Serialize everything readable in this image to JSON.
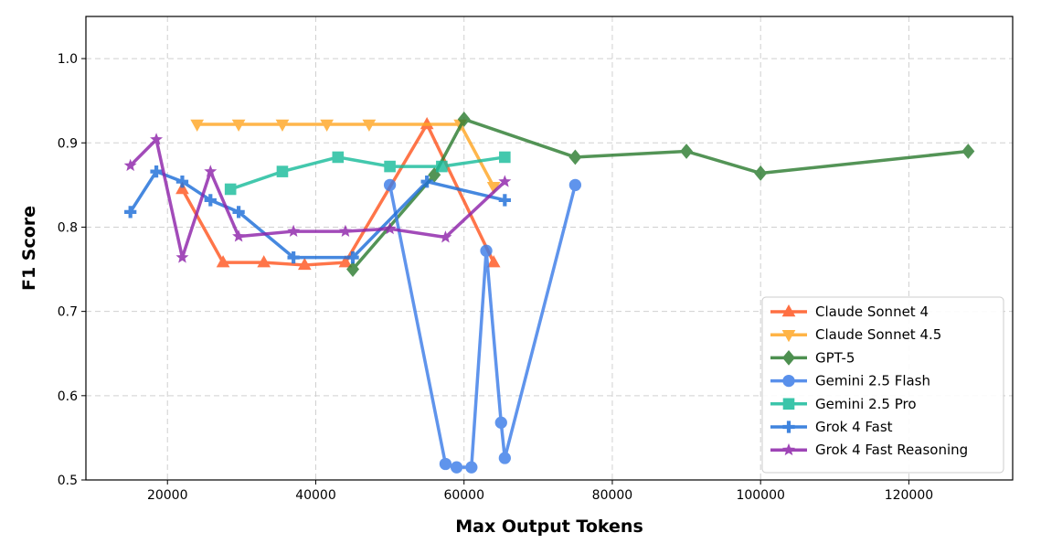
{
  "chart_data": {
    "type": "line",
    "title": "",
    "xlabel": "Max Output Tokens",
    "ylabel": "F1 Score",
    "xlim": [
      9000,
      134000
    ],
    "ylim": [
      0.5,
      1.05
    ],
    "xticks": [
      20000,
      40000,
      60000,
      80000,
      100000,
      120000
    ],
    "xtick_labels": [
      "20000",
      "40000",
      "60000",
      "80000",
      "100000",
      "120000"
    ],
    "yticks": [
      0.5,
      0.6,
      0.7,
      0.8,
      0.9,
      1.0
    ],
    "ytick_labels": [
      "0.5",
      "0.6",
      "0.7",
      "0.8",
      "0.9",
      "1.0"
    ],
    "grid": true,
    "legend_position": "bottom-right",
    "series": [
      {
        "name": "Claude Sonnet 4",
        "color": "#ff5722",
        "marker": "triangle-up",
        "points": [
          [
            22000,
            0.845
          ],
          [
            27500,
            0.758
          ],
          [
            33000,
            0.758
          ],
          [
            38500,
            0.755
          ],
          [
            44000,
            0.758
          ],
          [
            55000,
            0.922
          ],
          [
            64000,
            0.758
          ]
        ]
      },
      {
        "name": "Claude Sonnet 4.5",
        "color": "#ffa726",
        "marker": "triangle-down",
        "points": [
          [
            24000,
            0.922
          ],
          [
            29600,
            0.922
          ],
          [
            35500,
            0.922
          ],
          [
            41500,
            0.922
          ],
          [
            47200,
            0.922
          ],
          [
            59500,
            0.922
          ],
          [
            64000,
            0.848
          ]
        ]
      },
      {
        "name": "GPT-5",
        "color": "#2e7d32",
        "marker": "diamond",
        "points": [
          [
            45000,
            0.75
          ],
          [
            56000,
            0.862
          ],
          [
            60000,
            0.928
          ],
          [
            75000,
            0.883
          ],
          [
            90000,
            0.89
          ],
          [
            100000,
            0.864
          ],
          [
            128000,
            0.89
          ]
        ]
      },
      {
        "name": "Gemini 2.5 Flash",
        "color": "#3d7de8",
        "marker": "circle",
        "points": [
          [
            50000,
            0.85
          ],
          [
            57500,
            0.519
          ],
          [
            59000,
            0.515
          ],
          [
            61000,
            0.515
          ],
          [
            63000,
            0.772
          ],
          [
            65000,
            0.568
          ],
          [
            65500,
            0.526
          ],
          [
            75000,
            0.85
          ]
        ]
      },
      {
        "name": "Gemini 2.5 Pro",
        "color": "#1abc9c",
        "marker": "square",
        "points": [
          [
            28500,
            0.845
          ],
          [
            35500,
            0.866
          ],
          [
            43000,
            0.883
          ],
          [
            50000,
            0.872
          ],
          [
            57000,
            0.872
          ],
          [
            65500,
            0.883
          ]
        ]
      },
      {
        "name": "Grok 4 Fast",
        "color": "#1e6fd9",
        "marker": "plus",
        "points": [
          [
            15000,
            0.818
          ],
          [
            18500,
            0.866
          ],
          [
            22000,
            0.854
          ],
          [
            25800,
            0.832
          ],
          [
            29600,
            0.818
          ],
          [
            37000,
            0.764
          ],
          [
            45000,
            0.764
          ],
          [
            55000,
            0.854
          ],
          [
            65500,
            0.832
          ]
        ]
      },
      {
        "name": "Grok 4 Fast Reasoning",
        "color": "#8e24aa",
        "marker": "star",
        "points": [
          [
            15000,
            0.873
          ],
          [
            18500,
            0.904
          ],
          [
            22000,
            0.764
          ],
          [
            25800,
            0.866
          ],
          [
            29600,
            0.789
          ],
          [
            37000,
            0.795
          ],
          [
            44000,
            0.795
          ],
          [
            50000,
            0.798
          ],
          [
            57500,
            0.788
          ],
          [
            65500,
            0.854
          ]
        ]
      }
    ]
  }
}
